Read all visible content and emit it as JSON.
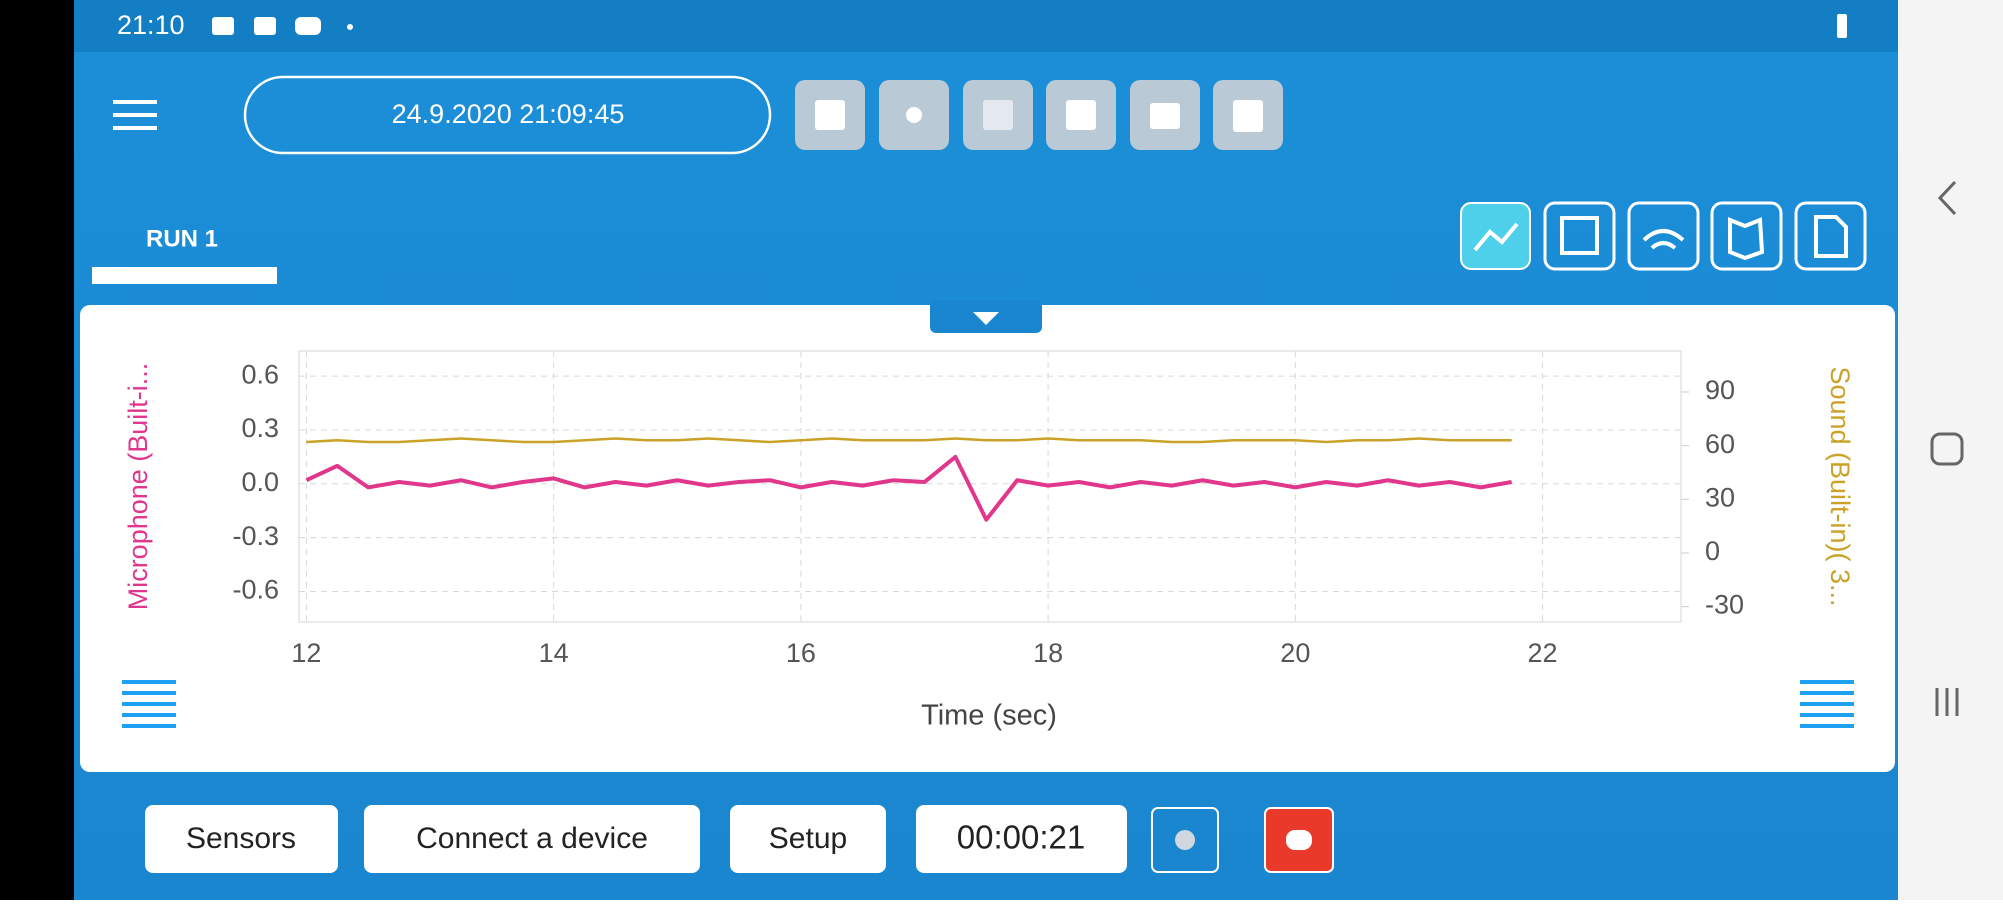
{
  "status_bar": {
    "time": "21:10"
  },
  "toolbar": {
    "timestamp": "24.9.2020 21:09:45"
  },
  "tabs": [
    "RUN 1"
  ],
  "chart_data": {
    "type": "line",
    "x_label": "Time (sec)",
    "x": [
      12,
      12.25,
      12.5,
      12.75,
      13,
      13.25,
      13.5,
      13.75,
      14,
      14.25,
      14.5,
      14.75,
      15,
      15.25,
      15.5,
      15.75,
      16,
      16.25,
      16.5,
      16.75,
      17,
      17.25,
      17.5,
      17.75,
      18,
      18.25,
      18.5,
      18.75,
      19,
      19.25,
      19.5,
      19.75,
      20,
      20.25,
      20.5,
      20.75,
      21,
      21.25,
      21.5,
      21.75
    ],
    "series": [
      {
        "name": "Microphone (Built-i...",
        "color": "#e0368c",
        "axis": "y",
        "values": [
          0.02,
          0.1,
          -0.02,
          0.01,
          -0.01,
          0.02,
          -0.02,
          0.01,
          0.03,
          -0.02,
          0.01,
          -0.01,
          0.02,
          -0.01,
          0.01,
          0.02,
          -0.02,
          0.01,
          -0.01,
          0.02,
          0.01,
          0.15,
          -0.2,
          0.02,
          -0.01,
          0.01,
          -0.02,
          0.01,
          -0.01,
          0.02,
          -0.01,
          0.01,
          -0.02,
          0.01,
          -0.01,
          0.02,
          -0.01,
          0.01,
          -0.02,
          0.01
        ]
      },
      {
        "name": "Sound (Built-in)( 3...",
        "color": "#c9a227",
        "axis": "y2",
        "values": [
          62,
          63,
          62,
          62,
          63,
          64,
          63,
          62,
          62,
          63,
          64,
          63,
          63,
          64,
          63,
          62,
          63,
          64,
          63,
          63,
          63,
          64,
          63,
          63,
          64,
          63,
          63,
          63,
          62,
          62,
          63,
          63,
          63,
          62,
          63,
          63,
          64,
          63,
          63,
          63
        ]
      }
    ],
    "xlim": [
      11.94,
      23.12
    ],
    "xticks": [
      12,
      14,
      16,
      18,
      20,
      22
    ],
    "ylim": [
      -0.77,
      0.74
    ],
    "yticks": [
      0.6,
      0.3,
      {
        "value": 0,
        "label": "0.0"
      },
      -0.3,
      -0.6
    ],
    "y2lim": [
      -38.6,
      112.9
    ],
    "y2ticks": [
      90,
      60,
      30,
      0,
      -30
    ],
    "grid": true
  },
  "controls": {
    "buttons": [
      "Sensors",
      "Connect a device",
      "Setup"
    ],
    "timer": "00:00:21"
  }
}
